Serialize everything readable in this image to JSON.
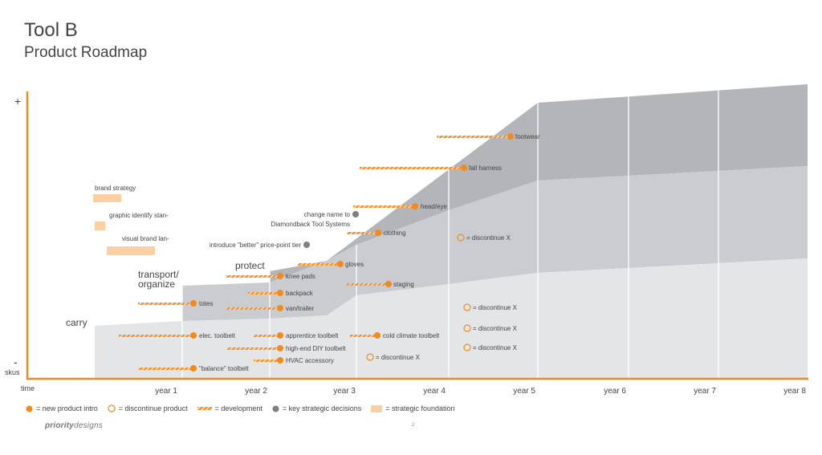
{
  "header": {
    "title": "Tool B",
    "subtitle": "Product Roadmap"
  },
  "axis": {
    "y_plus": "+",
    "y_minus": "-",
    "y_label": "skus",
    "x_label": "time",
    "years": [
      "year 1",
      "year 2",
      "year 3",
      "year 4",
      "year 5",
      "year 6",
      "year 7",
      "year 8"
    ]
  },
  "tiers": [
    {
      "label": "carry"
    },
    {
      "label_lines": [
        "transport/",
        "organize"
      ]
    },
    {
      "label": "protect"
    }
  ],
  "foundation": [
    {
      "label": "brand strategy"
    },
    {
      "label": "graphic identify stan-"
    },
    {
      "label": "visual brand lan-"
    }
  ],
  "decisions": [
    {
      "label_lines": [
        "change name to",
        "Diamondback Tool Systems"
      ]
    },
    {
      "label": "introduce \"better\" price-point tier"
    }
  ],
  "products": [
    {
      "label": "footwear"
    },
    {
      "label": "fall harness"
    },
    {
      "label": "head/eye"
    },
    {
      "label": "clothing"
    },
    {
      "label": "gloves"
    },
    {
      "label": "knee pads"
    },
    {
      "label": "staging"
    },
    {
      "label": "backpack"
    },
    {
      "label": "totes"
    },
    {
      "label": "van/trailer"
    },
    {
      "label": "elec. toolbelt"
    },
    {
      "label": "apprentice toolbelt"
    },
    {
      "label": "cold climate toolbelt"
    },
    {
      "label": "high-end DIY toolbelt"
    },
    {
      "label": "HVAC accessory"
    },
    {
      "label": "\"balance\" toolbelt"
    }
  ],
  "discontinued": [
    {
      "label": "= discontinue X"
    },
    {
      "label": "= discontinue X"
    },
    {
      "label": "= discontinue X"
    },
    {
      "label": "= discontinue X"
    },
    {
      "label": "= discontinue X"
    }
  ],
  "legend": {
    "new_product": "= new product intro",
    "discontinue": "= discontinue product",
    "development": "= development",
    "decisions": "= key strategic decisions",
    "foundation": "= strategic foundation"
  },
  "footer": {
    "logo_bold": "priority",
    "logo_rest": "designs",
    "page": "2"
  },
  "colors": {
    "orange": "#f28a1e",
    "foundation": "#f9cfa3",
    "band_dark": "#b4b5b8",
    "band_mid": "#cbcccf",
    "band_light": "#e4e5e7",
    "decision": "#808080"
  }
}
